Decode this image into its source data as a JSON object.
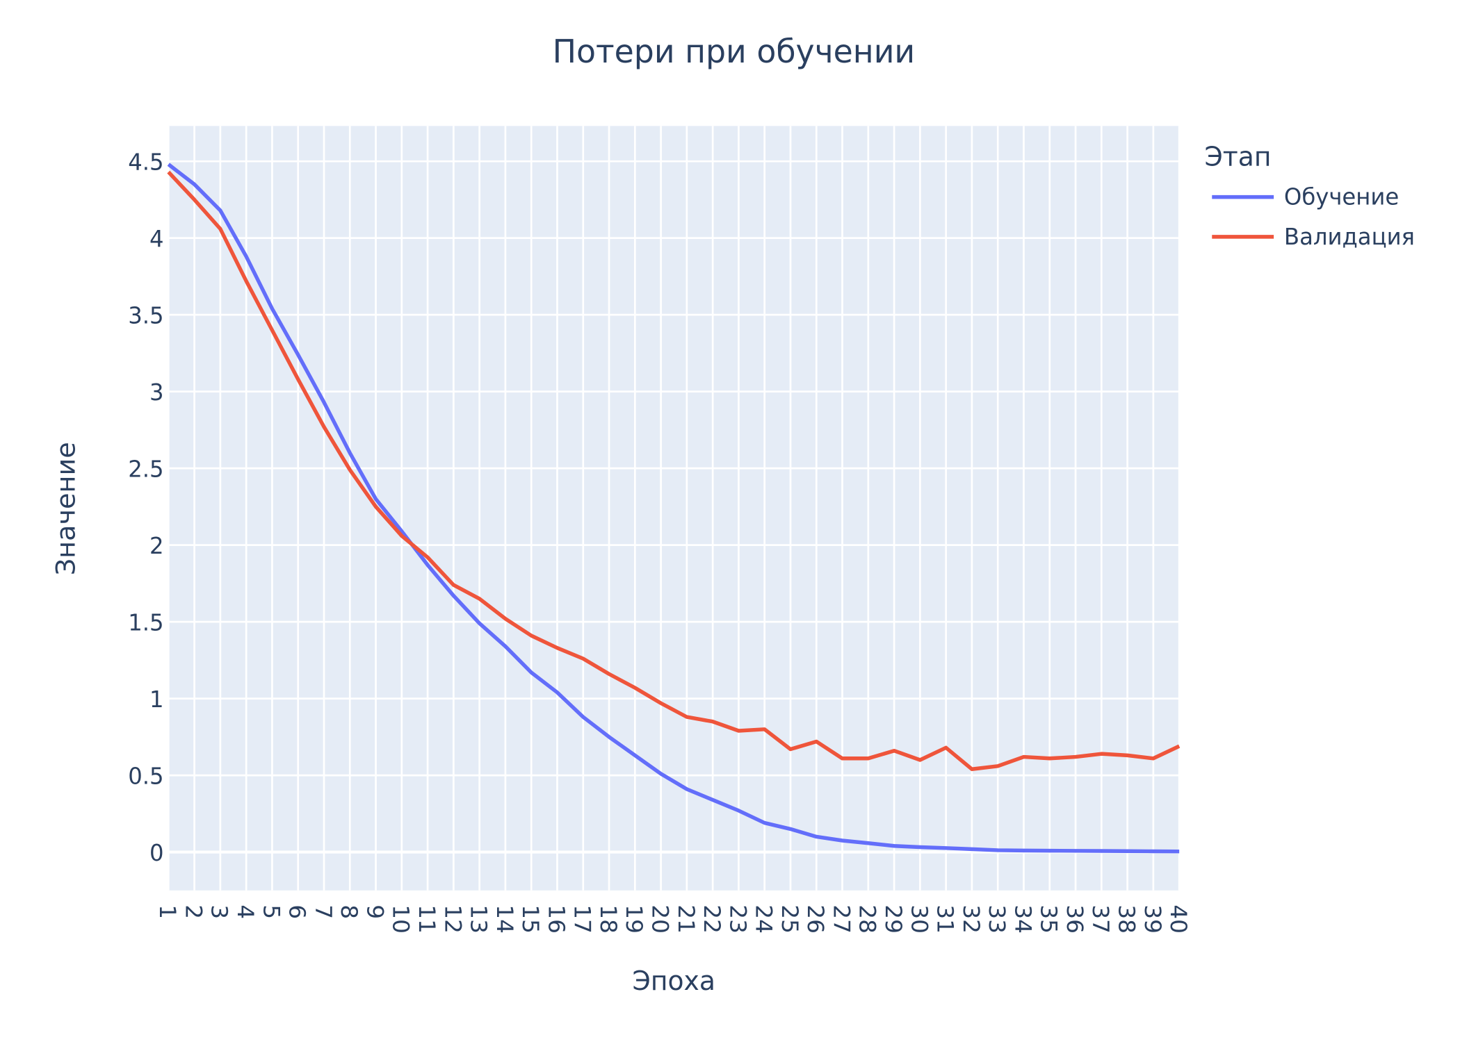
{
  "chart_data": {
    "type": "line",
    "title": "Потери при обучении",
    "xlabel": "Эпоха",
    "ylabel": "Значение",
    "legend_title": "Этап",
    "legend_position": "right",
    "grid": true,
    "x": [
      1,
      2,
      3,
      4,
      5,
      6,
      7,
      8,
      9,
      10,
      11,
      12,
      13,
      14,
      15,
      16,
      17,
      18,
      19,
      20,
      21,
      22,
      23,
      24,
      25,
      26,
      27,
      28,
      29,
      30,
      31,
      32,
      33,
      34,
      35,
      36,
      37,
      38,
      39,
      40
    ],
    "ylim": [
      -0.25,
      4.73
    ],
    "yticks": [
      0,
      0.5,
      1,
      1.5,
      2,
      2.5,
      3,
      3.5,
      4,
      4.5
    ],
    "ytick_labels": [
      "0",
      "0.5",
      "1",
      "1.5",
      "2",
      "2.5",
      "3",
      "3.5",
      "4",
      "4.5"
    ],
    "series": [
      {
        "name": "Обучение",
        "color": "#636efa",
        "values": [
          4.48,
          4.35,
          4.18,
          3.88,
          3.54,
          3.24,
          2.93,
          2.6,
          2.3,
          2.09,
          1.87,
          1.67,
          1.49,
          1.34,
          1.17,
          1.04,
          0.88,
          0.75,
          0.63,
          0.51,
          0.41,
          0.34,
          0.27,
          0.19,
          0.15,
          0.1,
          0.075,
          0.058,
          0.04,
          0.032,
          0.026,
          0.019,
          0.012,
          0.01,
          0.009,
          0.008,
          0.007,
          0.006,
          0.005,
          0.004
        ]
      },
      {
        "name": "Валидация",
        "color": "#ef553b",
        "values": [
          4.43,
          4.25,
          4.06,
          3.72,
          3.4,
          3.08,
          2.77,
          2.49,
          2.25,
          2.06,
          1.92,
          1.74,
          1.65,
          1.52,
          1.41,
          1.33,
          1.26,
          1.16,
          1.07,
          0.97,
          0.88,
          0.85,
          0.79,
          0.8,
          0.67,
          0.72,
          0.61,
          0.61,
          0.66,
          0.6,
          0.68,
          0.54,
          0.56,
          0.62,
          0.61,
          0.62,
          0.64,
          0.63,
          0.61,
          0.69
        ]
      }
    ]
  }
}
